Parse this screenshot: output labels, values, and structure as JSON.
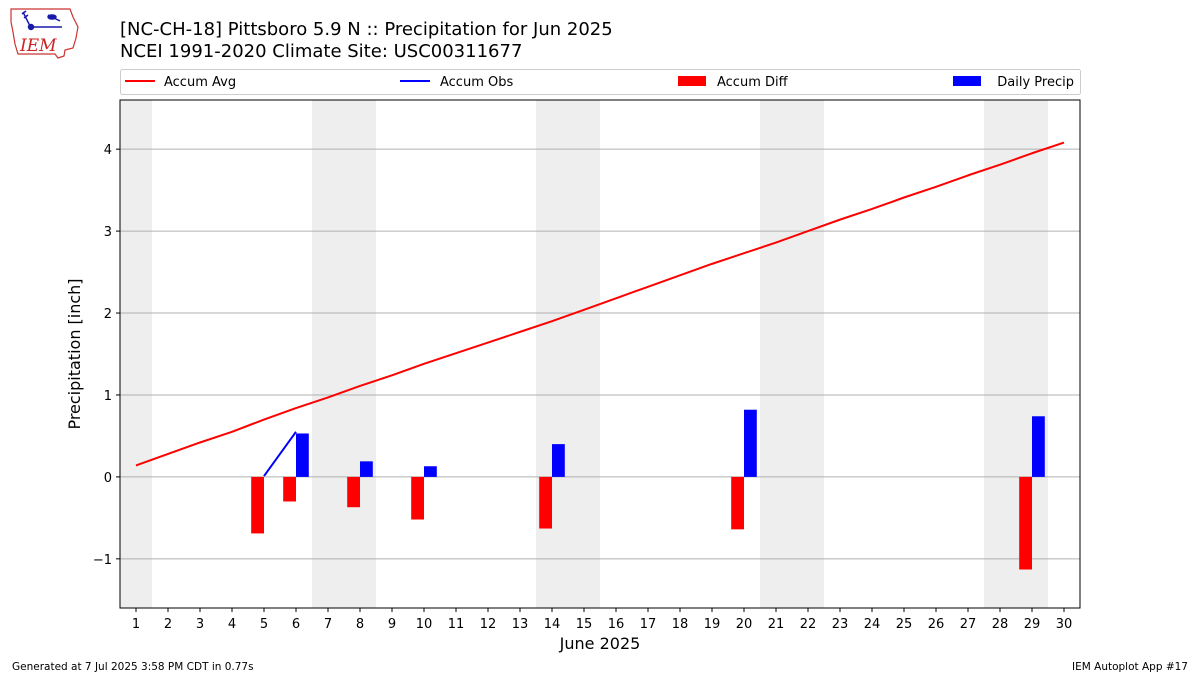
{
  "header": {
    "title_line1": "[NC-CH-18] Pittsboro 5.9 N :: Precipitation for Jun 2025",
    "title_line2": "NCEI 1991-2020 Climate Site: USC00311677"
  },
  "logo": {
    "text": "IEM",
    "color": "#cc2222"
  },
  "footer": {
    "left": "Generated at 7 Jul 2025 3:58 PM CDT in 0.77s",
    "right": "IEM Autoplot App #17"
  },
  "chart_data": {
    "type": "bar",
    "title": "[NC-CH-18] Pittsboro 5.9 N :: Precipitation for Jun 2025",
    "subtitle": "NCEI 1991-2020 Climate Site: USC00311677",
    "xlabel": "June 2025",
    "ylabel": "Precipitation [inch]",
    "xlim": [
      0.5,
      30.5
    ],
    "ylim": [
      -1.6,
      4.6
    ],
    "x_ticks": [
      1,
      2,
      3,
      4,
      5,
      6,
      7,
      8,
      9,
      10,
      11,
      12,
      13,
      14,
      15,
      16,
      17,
      18,
      19,
      20,
      21,
      22,
      23,
      24,
      25,
      26,
      27,
      28,
      29,
      30
    ],
    "y_ticks": [
      -1,
      0,
      1,
      2,
      3,
      4
    ],
    "y_tick_labels": [
      "−1",
      "0",
      "1",
      "2",
      "3",
      "4"
    ],
    "grid": "horizontal",
    "legend_placement": "top, above plot",
    "weekend_shading": {
      "color": "#eeeeee",
      "ranges": [
        [
          0.5,
          1.5
        ],
        [
          6.5,
          8.5
        ],
        [
          13.5,
          15.5
        ],
        [
          20.5,
          22.5
        ],
        [
          27.5,
          29.5
        ]
      ]
    },
    "series": [
      {
        "name": "Accum Avg",
        "kind": "line",
        "color": "#ff0000",
        "x": [
          1,
          2,
          3,
          4,
          5,
          6,
          7,
          8,
          9,
          10,
          11,
          12,
          13,
          14,
          15,
          16,
          17,
          18,
          19,
          20,
          21,
          22,
          23,
          24,
          25,
          26,
          27,
          28,
          29,
          30
        ],
        "values": [
          0.14,
          0.28,
          0.42,
          0.55,
          0.7,
          0.84,
          0.97,
          1.11,
          1.24,
          1.38,
          1.51,
          1.64,
          1.77,
          1.9,
          2.04,
          2.18,
          2.32,
          2.46,
          2.6,
          2.73,
          2.86,
          3.0,
          3.14,
          3.27,
          3.41,
          3.54,
          3.68,
          3.81,
          3.95,
          4.08
        ]
      },
      {
        "name": "Accum Obs",
        "kind": "line",
        "color": "#0000ff",
        "x": [
          5,
          6
        ],
        "values": [
          0.01,
          0.55
        ]
      },
      {
        "name": "Accum Diff",
        "kind": "bar",
        "color": "#ff0000",
        "offset": -0.2,
        "x": [
          5,
          6,
          8,
          10,
          14,
          20,
          29
        ],
        "values": [
          -0.69,
          -0.3,
          -0.37,
          -0.52,
          -0.63,
          -0.64,
          -1.13
        ]
      },
      {
        "name": "Daily Precip",
        "kind": "bar",
        "color": "#0000ff",
        "offset": 0.2,
        "x": [
          6,
          8,
          10,
          14,
          20,
          29
        ],
        "values": [
          0.53,
          0.19,
          0.13,
          0.4,
          0.82,
          0.74
        ]
      }
    ]
  }
}
